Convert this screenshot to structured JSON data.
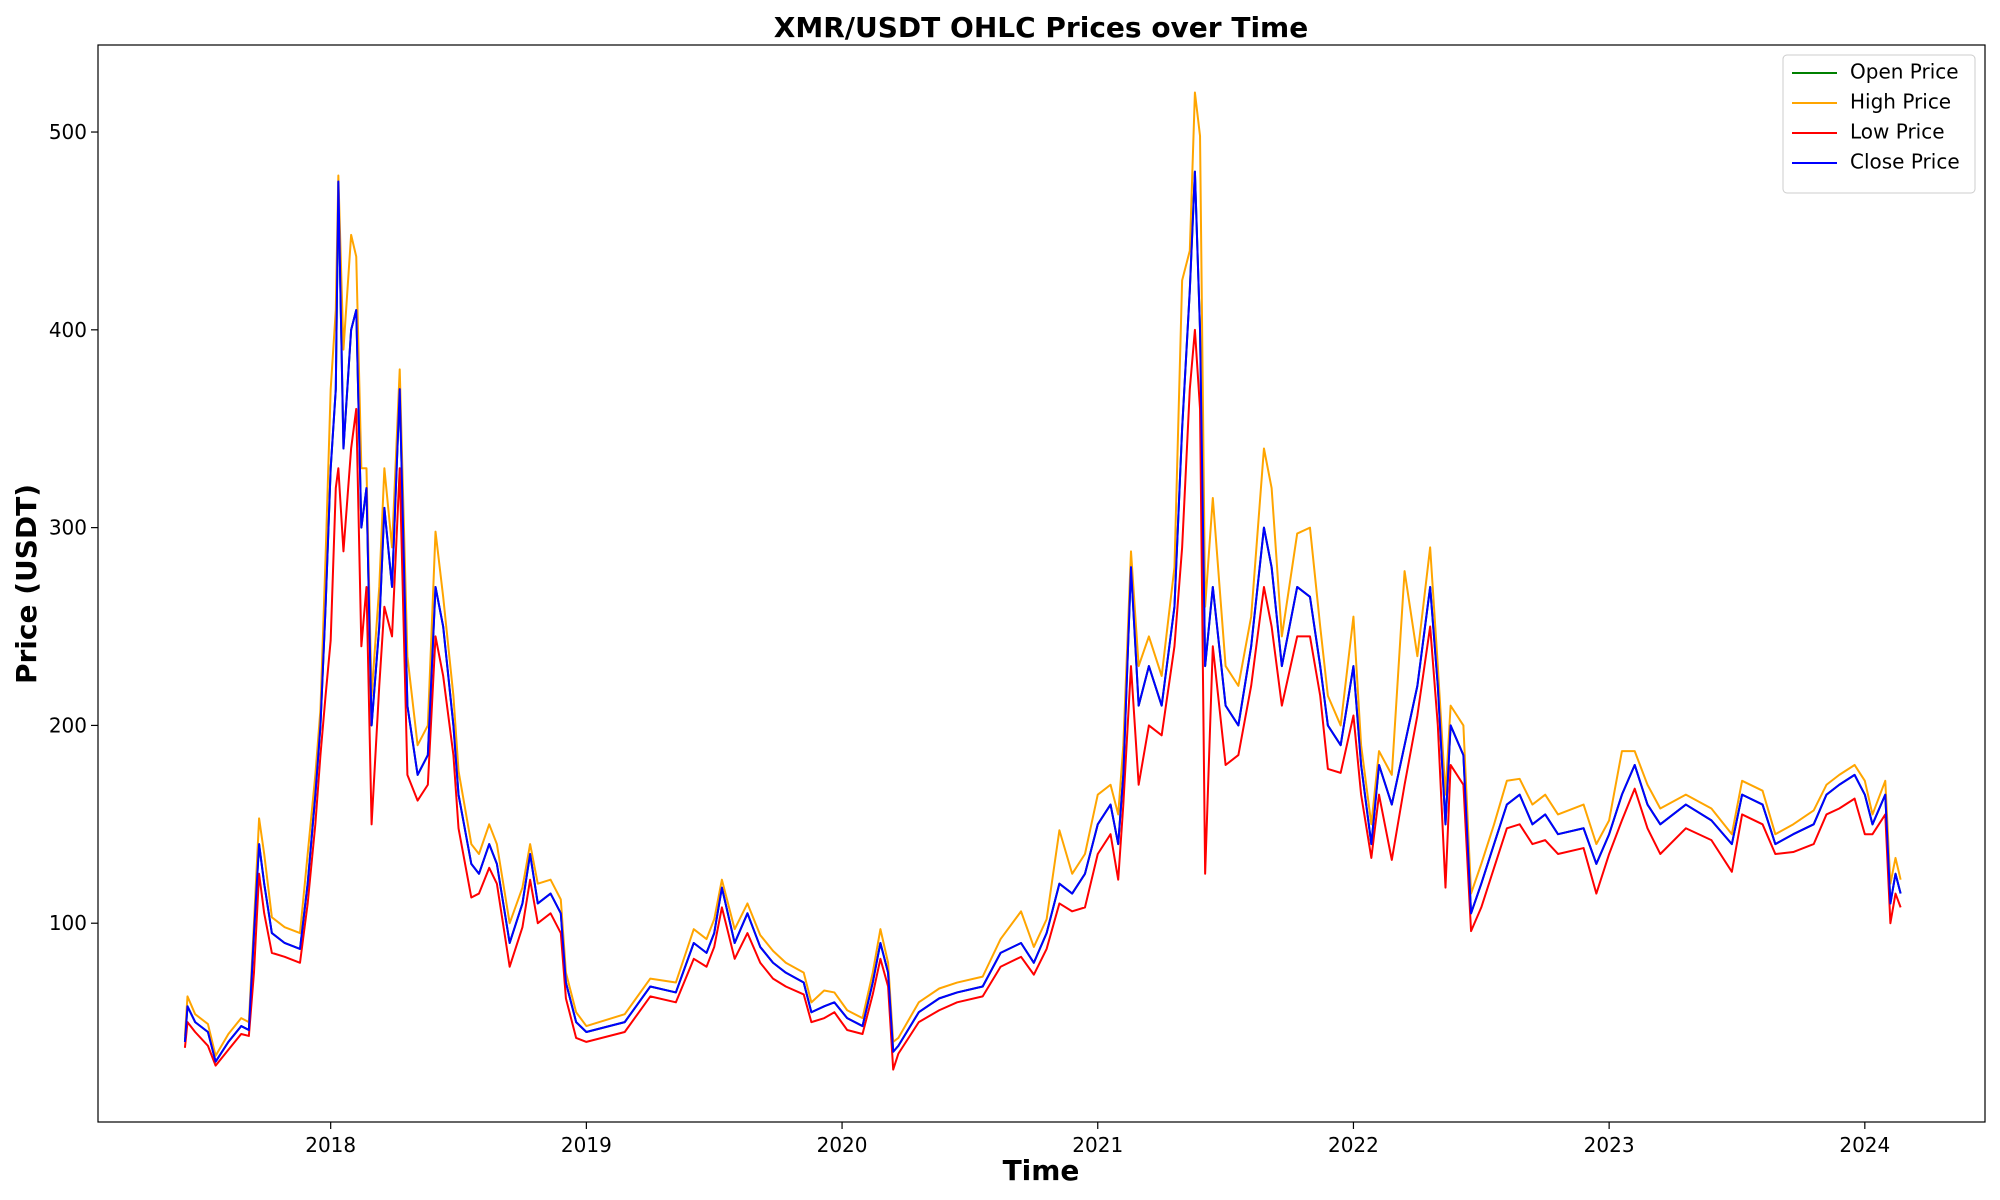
{
  "chart_data": {
    "type": "line",
    "title": "XMR/USDT OHLC Prices over Time",
    "x_label": "Time",
    "y_label": "Price (USDT)",
    "x": [
      2017.43,
      2017.44,
      2017.47,
      2017.52,
      2017.55,
      2017.6,
      2017.65,
      2017.68,
      2017.7,
      2017.72,
      2017.74,
      2017.77,
      2017.82,
      2017.88,
      2017.91,
      2017.94,
      2017.96,
      2017.98,
      2018,
      2018.02,
      2018.03,
      2018.05,
      2018.08,
      2018.1,
      2018.12,
      2018.14,
      2018.16,
      2018.19,
      2018.21,
      2018.24,
      2018.27,
      2018.3,
      2018.34,
      2018.38,
      2018.41,
      2018.44,
      2018.48,
      2018.5,
      2018.55,
      2018.58,
      2018.62,
      2018.65,
      2018.7,
      2018.75,
      2018.78,
      2018.81,
      2018.86,
      2018.9,
      2018.92,
      2018.96,
      2019,
      2019.15,
      2019.25,
      2019.35,
      2019.42,
      2019.47,
      2019.5,
      2019.53,
      2019.58,
      2019.63,
      2019.68,
      2019.73,
      2019.78,
      2019.85,
      2019.88,
      2019.93,
      2019.97,
      2020.02,
      2020.08,
      2020.12,
      2020.15,
      2020.18,
      2020.2,
      2020.22,
      2020.3,
      2020.38,
      2020.45,
      2020.55,
      2020.62,
      2020.7,
      2020.75,
      2020.8,
      2020.85,
      2020.9,
      2020.95,
      2021,
      2021.05,
      2021.08,
      2021.1,
      2021.13,
      2021.16,
      2021.2,
      2021.25,
      2021.3,
      2021.33,
      2021.36,
      2021.38,
      2021.4,
      2021.42,
      2021.45,
      2021.5,
      2021.55,
      2021.6,
      2021.65,
      2021.68,
      2021.72,
      2021.78,
      2021.83,
      2021.87,
      2021.9,
      2021.95,
      2022,
      2022.03,
      2022.07,
      2022.1,
      2022.15,
      2022.2,
      2022.25,
      2022.3,
      2022.33,
      2022.36,
      2022.38,
      2022.43,
      2022.46,
      2022.5,
      2022.55,
      2022.6,
      2022.65,
      2022.7,
      2022.75,
      2022.8,
      2022.9,
      2022.95,
      2023,
      2023.05,
      2023.1,
      2023.15,
      2023.2,
      2023.3,
      2023.4,
      2023.48,
      2023.52,
      2023.6,
      2023.65,
      2023.72,
      2023.8,
      2023.85,
      2023.9,
      2023.96,
      2024,
      2024.03,
      2024.08,
      2024.1,
      2024.12,
      2024.14
    ],
    "series": [
      {
        "name": "Open Price",
        "color": "green",
        "values": [
          40,
          58,
          50,
          45,
          30,
          40,
          48,
          46,
          95,
          140,
          120,
          95,
          90,
          87,
          120,
          165,
          200,
          260,
          330,
          370,
          475,
          340,
          400,
          410,
          300,
          320,
          200,
          250,
          310,
          270,
          370,
          210,
          175,
          185,
          270,
          250,
          200,
          165,
          130,
          125,
          140,
          130,
          90,
          110,
          135,
          110,
          115,
          105,
          70,
          50,
          45,
          50,
          68,
          65,
          90,
          85,
          95,
          118,
          90,
          105,
          88,
          80,
          75,
          70,
          55,
          58,
          60,
          52,
          48,
          70,
          90,
          75,
          35,
          38,
          55,
          62,
          65,
          68,
          85,
          90,
          80,
          95,
          120,
          115,
          125,
          150,
          160,
          140,
          175,
          280,
          210,
          230,
          210,
          260,
          350,
          420,
          480,
          400,
          230,
          270,
          210,
          200,
          240,
          300,
          280,
          230,
          270,
          265,
          230,
          200,
          190,
          230,
          180,
          140,
          180,
          160,
          190,
          220,
          270,
          220,
          150,
          200,
          185,
          105,
          120,
          140,
          160,
          165,
          150,
          155,
          145,
          148,
          130,
          145,
          165,
          180,
          160,
          150,
          160,
          152,
          140,
          165,
          160,
          140,
          145,
          150,
          165,
          170,
          175,
          165,
          150,
          165,
          110,
          125,
          115
        ]
      },
      {
        "name": "High Price",
        "color": "orange",
        "values": [
          43,
          63,
          54,
          49,
          33,
          44,
          52,
          50,
          100,
          153,
          135,
          103,
          98,
          95,
          135,
          175,
          208,
          285,
          370,
          410,
          478,
          390,
          448,
          437,
          330,
          330,
          215,
          270,
          330,
          290,
          380,
          235,
          190,
          200,
          298,
          265,
          215,
          177,
          140,
          135,
          150,
          140,
          100,
          118,
          140,
          120,
          122,
          112,
          75,
          55,
          48,
          54,
          72,
          70,
          97,
          92,
          102,
          122,
          97,
          110,
          94,
          86,
          80,
          75,
          60,
          66,
          65,
          56,
          52,
          75,
          97,
          80,
          40,
          42,
          60,
          67,
          70,
          73,
          92,
          106,
          88,
          102,
          147,
          125,
          135,
          165,
          170,
          155,
          190,
          288,
          230,
          245,
          225,
          280,
          425,
          440,
          520,
          498,
          260,
          315,
          230,
          220,
          255,
          340,
          320,
          245,
          297,
          300,
          250,
          215,
          200,
          255,
          190,
          150,
          187,
          175,
          278,
          235,
          290,
          230,
          165,
          210,
          200,
          115,
          130,
          150,
          172,
          173,
          160,
          165,
          155,
          160,
          140,
          152,
          187,
          187,
          170,
          158,
          165,
          158,
          145,
          172,
          167,
          145,
          150,
          157,
          170,
          175,
          180,
          172,
          155,
          172,
          120,
          133,
          122
        ]
      },
      {
        "name": "Low Price",
        "color": "red",
        "values": [
          37,
          50,
          45,
          38,
          28,
          36,
          44,
          43,
          75,
          125,
          105,
          85,
          83,
          80,
          110,
          150,
          185,
          215,
          243,
          320,
          330,
          288,
          340,
          360,
          240,
          270,
          150,
          220,
          260,
          245,
          330,
          175,
          162,
          170,
          245,
          225,
          185,
          148,
          113,
          115,
          128,
          120,
          78,
          98,
          122,
          100,
          105,
          95,
          62,
          42,
          40,
          45,
          63,
          60,
          82,
          78,
          88,
          108,
          82,
          95,
          80,
          72,
          68,
          64,
          50,
          52,
          55,
          46,
          44,
          64,
          82,
          68,
          26,
          34,
          50,
          56,
          60,
          63,
          78,
          83,
          74,
          87,
          110,
          106,
          108,
          135,
          145,
          122,
          160,
          230,
          170,
          200,
          195,
          240,
          290,
          370,
          400,
          360,
          125,
          240,
          180,
          185,
          220,
          270,
          250,
          210,
          245,
          245,
          215,
          178,
          176,
          205,
          165,
          133,
          165,
          132,
          170,
          205,
          250,
          200,
          118,
          180,
          170,
          96,
          108,
          128,
          148,
          150,
          140,
          142,
          135,
          138,
          115,
          135,
          152,
          168,
          148,
          135,
          148,
          142,
          126,
          155,
          150,
          135,
          136,
          140,
          155,
          158,
          163,
          145,
          145,
          155,
          100,
          115,
          108
        ]
      },
      {
        "name": "Close Price",
        "color": "blue",
        "values": [
          40,
          58,
          50,
          45,
          30,
          40,
          48,
          46,
          95,
          140,
          120,
          95,
          90,
          87,
          120,
          165,
          200,
          260,
          330,
          370,
          475,
          340,
          400,
          410,
          300,
          320,
          200,
          250,
          310,
          270,
          370,
          210,
          175,
          185,
          270,
          250,
          200,
          165,
          130,
          125,
          140,
          130,
          90,
          110,
          135,
          110,
          115,
          105,
          70,
          50,
          45,
          50,
          68,
          65,
          90,
          85,
          95,
          118,
          90,
          105,
          88,
          80,
          75,
          70,
          55,
          58,
          60,
          52,
          48,
          70,
          90,
          75,
          35,
          38,
          55,
          62,
          65,
          68,
          85,
          90,
          80,
          95,
          120,
          115,
          125,
          150,
          160,
          140,
          175,
          280,
          210,
          230,
          210,
          260,
          350,
          420,
          480,
          400,
          230,
          270,
          210,
          200,
          240,
          300,
          280,
          230,
          270,
          265,
          230,
          200,
          190,
          230,
          180,
          140,
          180,
          160,
          190,
          220,
          270,
          220,
          150,
          200,
          185,
          105,
          120,
          140,
          160,
          165,
          150,
          155,
          145,
          148,
          130,
          145,
          165,
          180,
          160,
          150,
          160,
          152,
          140,
          165,
          160,
          140,
          145,
          150,
          165,
          170,
          175,
          165,
          150,
          165,
          110,
          125,
          115
        ]
      }
    ],
    "xlim": [
      2017.09,
      2024.47
    ],
    "ylim": [
      -0.5,
      544
    ],
    "xticks": [
      2018,
      2019,
      2020,
      2021,
      2022,
      2023,
      2024
    ],
    "yticks": [
      100,
      200,
      300,
      400,
      500
    ],
    "legend": "upper right",
    "grid": false
  }
}
